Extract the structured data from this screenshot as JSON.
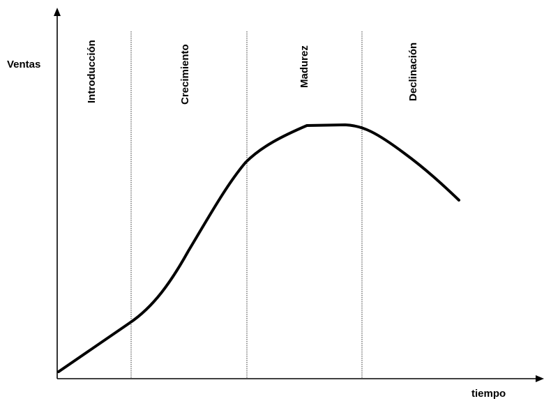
{
  "axes": {
    "y_label": "Ventas",
    "x_label": "tiempo"
  },
  "stages": [
    {
      "label": "Introducción"
    },
    {
      "label": "Crecimiento"
    },
    {
      "label": "Madurez"
    },
    {
      "label": "Declinación"
    }
  ],
  "colors": {
    "line": "#000000",
    "background": "#ffffff"
  }
}
